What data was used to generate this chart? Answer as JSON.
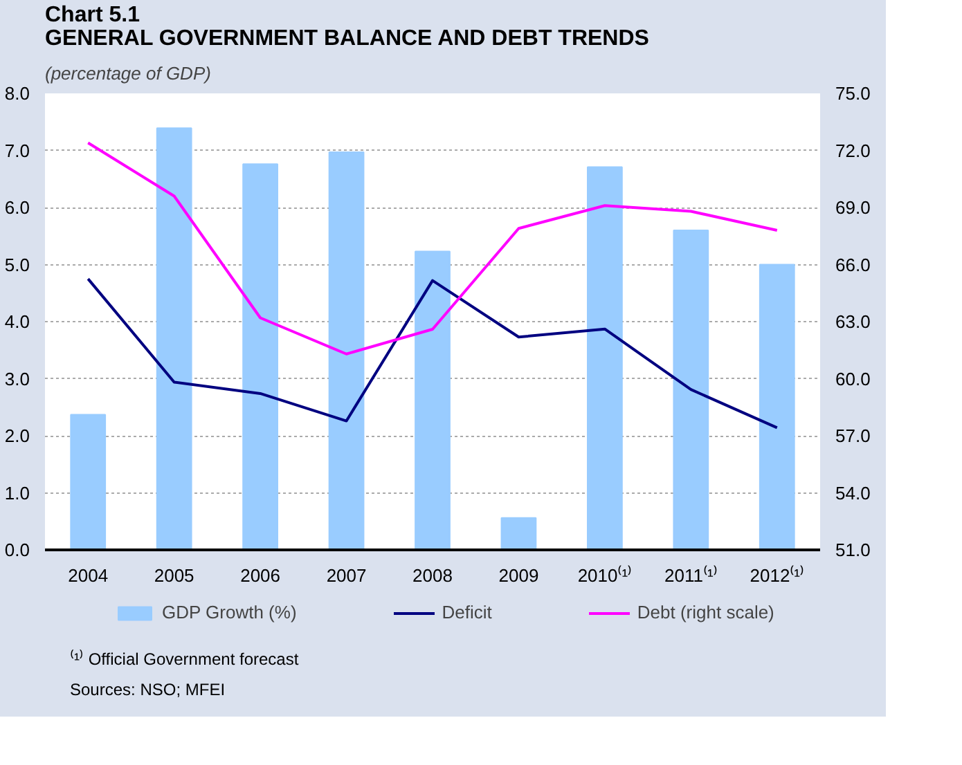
{
  "chart_data": {
    "type": "bar",
    "title": "Chart 5.1\nGENERAL GOVERNMENT BALANCE AND DEBT TRENDS",
    "subtitle": "(percentage of GDP)",
    "categories": [
      "2004",
      "2005",
      "2006",
      "2007",
      "2008",
      "2009",
      "2010⁽¹⁾",
      "2011⁽¹⁾",
      "2012⁽¹⁾"
    ],
    "series": [
      {
        "name": "GDP Growth (%)",
        "color": "#99ccff",
        "values": [
          2.37,
          7.39,
          6.76,
          6.97,
          5.23,
          0.56,
          6.71,
          5.6,
          5.0
        ]
      },
      {
        "name": "Deficit",
        "type": "line",
        "color": "#000080",
        "values": [
          4.75,
          2.94,
          2.74,
          2.26,
          4.72,
          3.73,
          3.87,
          2.81,
          2.14
        ]
      },
      {
        "name": "Debt (right scale)",
        "type": "line",
        "color": "#ff00ff",
        "axis": "y2",
        "values": [
          72.4,
          69.6,
          63.2,
          61.3,
          62.6,
          67.9,
          69.1,
          68.8,
          67.8
        ]
      }
    ],
    "ylim": [
      0,
      8
    ],
    "yticks": [
      {
        "value": 0,
        "label": "0.0"
      },
      {
        "value": 1,
        "label": "1.0"
      },
      {
        "value": 2,
        "label": "2.0"
      },
      {
        "value": 3,
        "label": "3.0"
      },
      {
        "value": 4,
        "label": "4.0"
      },
      {
        "value": 5,
        "label": "5.0"
      },
      {
        "value": 6,
        "label": "6.0"
      },
      {
        "value": 7,
        "label": "7.0"
      },
      {
        "value": 8,
        "label": "8.0"
      }
    ],
    "y2lim": [
      51,
      75
    ],
    "y2ticks": [
      {
        "value": 51,
        "label": "51.0"
      },
      {
        "value": 54,
        "label": "54.0"
      },
      {
        "value": 57,
        "label": "57.0"
      },
      {
        "value": 60,
        "label": "60.0"
      },
      {
        "value": 63,
        "label": "63.0"
      },
      {
        "value": 66,
        "label": "66.0"
      },
      {
        "value": 69,
        "label": "69.0"
      },
      {
        "value": 72,
        "label": "72.0"
      },
      {
        "value": 75,
        "label": "75.0"
      }
    ],
    "grid": "y",
    "legend": "bottom",
    "line_style": "solid",
    "marker": "none",
    "annotations": [
      "⁽¹⁾ Official Government forecast",
      "Sources: NSO; MFEI"
    ]
  }
}
